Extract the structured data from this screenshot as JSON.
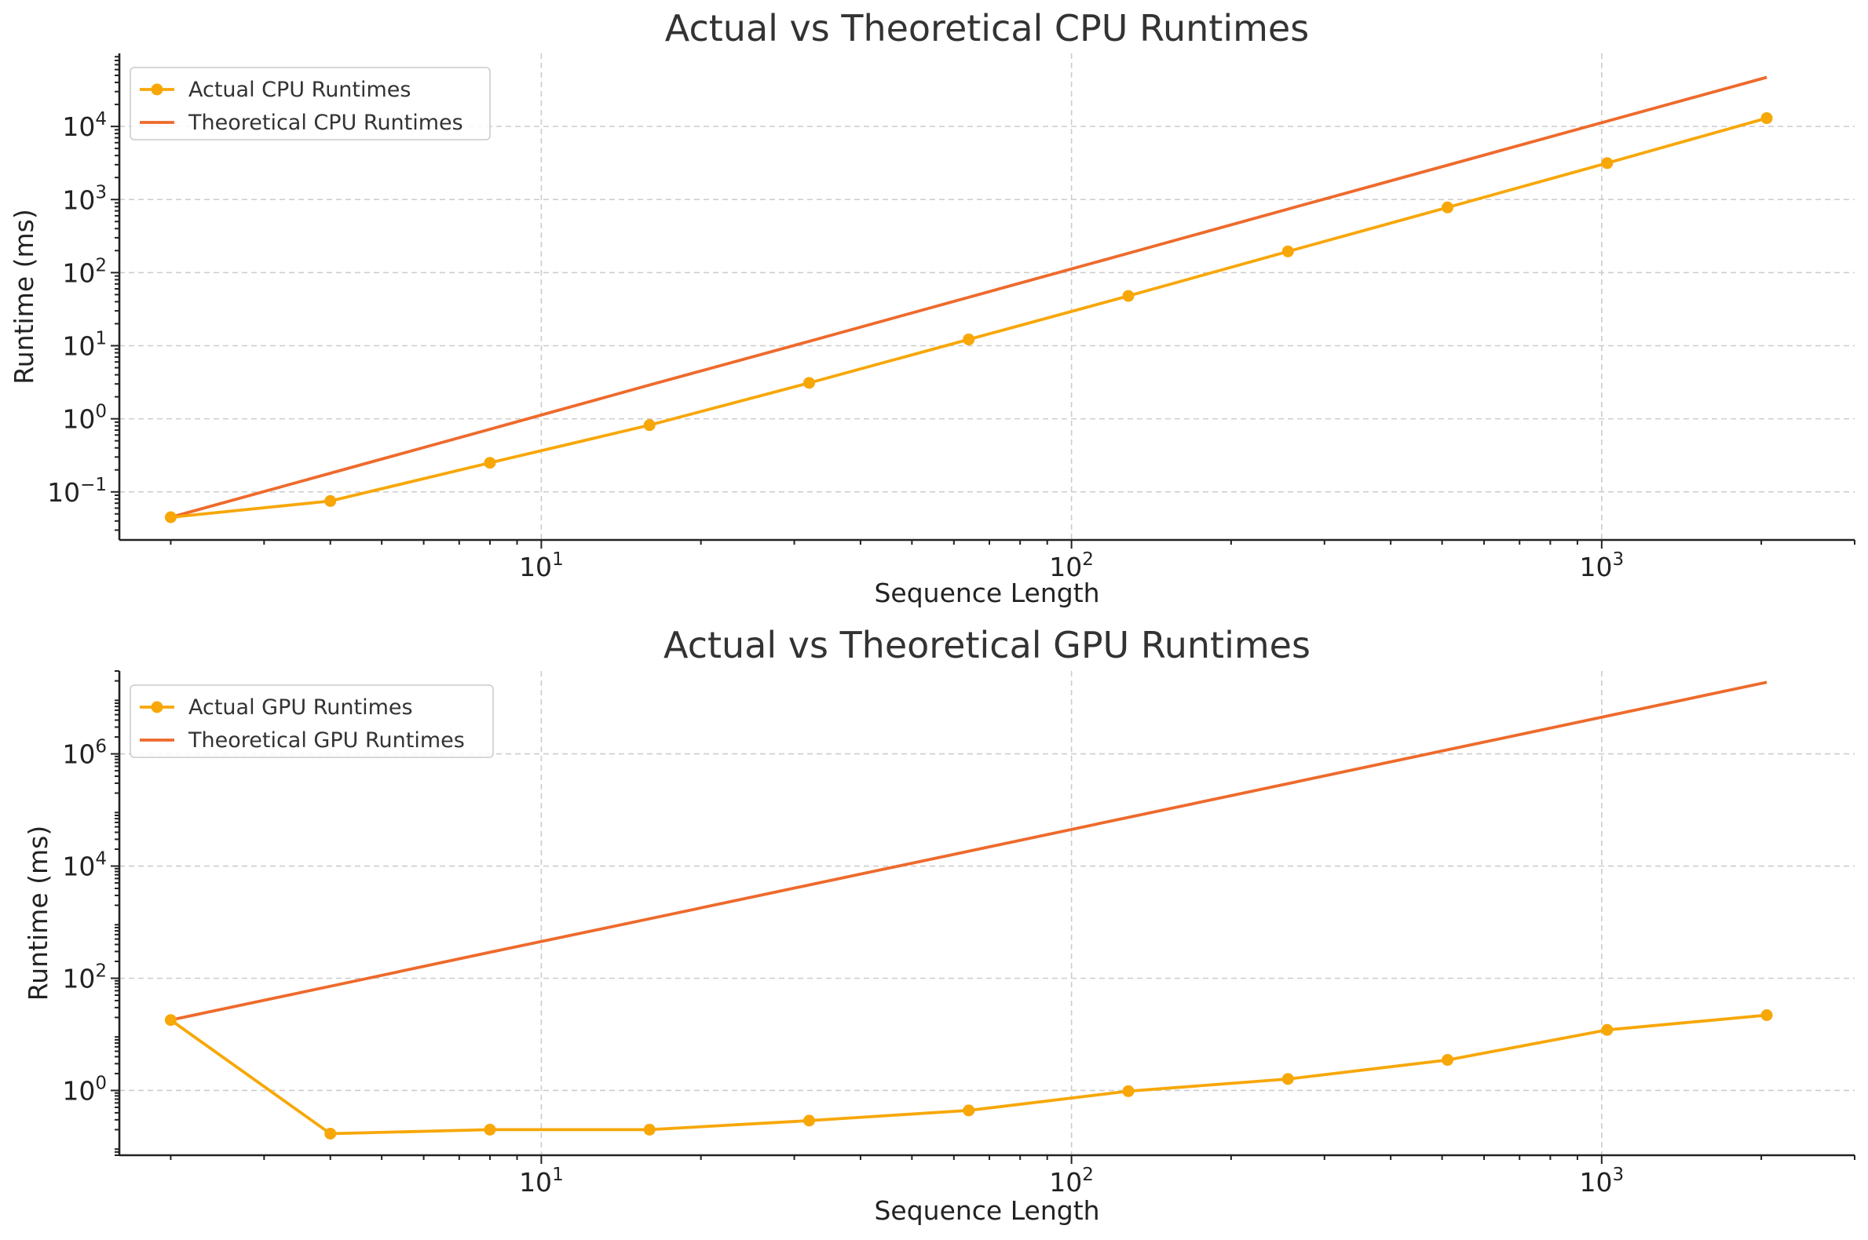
{
  "colors": {
    "actual": "#f7a708",
    "theoretical": "#ee6a2c"
  },
  "chart_data": [
    {
      "type": "line",
      "title": "Actual vs Theoretical CPU Runtimes",
      "xlabel": "Sequence Length",
      "ylabel": "Runtime (ms)",
      "xscale": "log",
      "yscale": "log",
      "xlim": [
        1.6,
        3000
      ],
      "ylim": [
        0.022,
        100000
      ],
      "grid": true,
      "legend_position": "top-left",
      "x_ticks": [
        {
          "value": 10,
          "base": "10",
          "exp": "1"
        },
        {
          "value": 100,
          "base": "10",
          "exp": "2"
        },
        {
          "value": 1000,
          "base": "10",
          "exp": "3"
        }
      ],
      "y_ticks": [
        {
          "value": 0.1,
          "base": "10",
          "exp": "−1"
        },
        {
          "value": 1,
          "base": "10",
          "exp": "0"
        },
        {
          "value": 10,
          "base": "10",
          "exp": "1"
        },
        {
          "value": 100,
          "base": "10",
          "exp": "2"
        },
        {
          "value": 1000,
          "base": "10",
          "exp": "3"
        },
        {
          "value": 10000,
          "base": "10",
          "exp": "4"
        }
      ],
      "x": [
        2,
        4,
        8,
        16,
        32,
        64,
        128,
        256,
        512,
        1024,
        2048
      ],
      "series": [
        {
          "name": "Actual CPU Runtimes",
          "color_key": "actual",
          "markers": true,
          "values": [
            0.045,
            0.075,
            0.25,
            0.82,
            3.1,
            12.2,
            48,
            195,
            780,
            3150,
            13000
          ]
        },
        {
          "name": "Theoretical CPU Runtimes",
          "color_key": "theoretical",
          "markers": false,
          "values": [
            0.045,
            0.18,
            0.72,
            2.9,
            11.5,
            46,
            184,
            740,
            2950,
            11800,
            47000
          ]
        }
      ]
    },
    {
      "type": "line",
      "title": "Actual vs Theoretical GPU Runtimes",
      "xlabel": "Sequence Length",
      "ylabel": "Runtime (ms)",
      "xscale": "log",
      "yscale": "log",
      "xlim": [
        1.6,
        3000
      ],
      "ylim": [
        0.07,
        30000000
      ],
      "grid": true,
      "legend_position": "top-left",
      "x_ticks": [
        {
          "value": 10,
          "base": "10",
          "exp": "1"
        },
        {
          "value": 100,
          "base": "10",
          "exp": "2"
        },
        {
          "value": 1000,
          "base": "10",
          "exp": "3"
        }
      ],
      "y_ticks": [
        {
          "value": 1,
          "base": "10",
          "exp": "0"
        },
        {
          "value": 100,
          "base": "10",
          "exp": "2"
        },
        {
          "value": 10000,
          "base": "10",
          "exp": "4"
        },
        {
          "value": 1000000,
          "base": "10",
          "exp": "6"
        }
      ],
      "x": [
        2,
        4,
        8,
        16,
        32,
        64,
        128,
        256,
        512,
        1024,
        2048
      ],
      "series": [
        {
          "name": "Actual GPU Runtimes",
          "color_key": "actual",
          "markers": true,
          "values": [
            18,
            0.17,
            0.2,
            0.2,
            0.29,
            0.44,
            0.97,
            1.6,
            3.5,
            12,
            22
          ]
        },
        {
          "name": "Theoretical GPU Runtimes",
          "color_key": "theoretical",
          "markers": false,
          "values": [
            18,
            72,
            290,
            1150,
            4600,
            18400,
            73700,
            295000,
            1180000,
            4720000,
            18900000
          ]
        }
      ]
    }
  ]
}
